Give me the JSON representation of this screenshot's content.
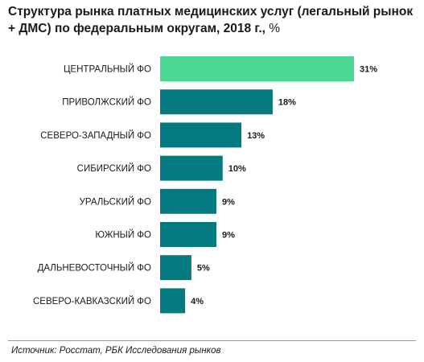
{
  "header": {
    "title": "Структура рынка платных медицинских услуг (легальный рынок + ДМС) по федеральным округам, 2018 г.,",
    "unit": "%"
  },
  "footer": {
    "source": "Источник: Росстат, РБК Исследования рынков"
  },
  "colors": {
    "highlight": "#4ed896",
    "bar": "#047a80"
  },
  "chart_data": {
    "type": "bar",
    "orientation": "horizontal",
    "categories": [
      "ЦЕНТРАЛЬНЫЙ ФО",
      "ПРИВОЛЖСКИЙ ФО",
      "СЕВЕРО-ЗАПАДНЫЙ ФО",
      "СИБИРСКИЙ ФО",
      "УРАЛЬСКИЙ ФО",
      "ЮЖНЫЙ ФО",
      "ДАЛЬНЕВОСТОЧНЫЙ ФО",
      "СЕВЕРО-КАВКАЗСКИЙ ФО"
    ],
    "values": [
      31,
      18,
      13,
      10,
      9,
      9,
      5,
      4
    ],
    "value_labels": [
      "31%",
      "18%",
      "13%",
      "10%",
      "9%",
      "9%",
      "5%",
      "4%"
    ],
    "highlighted_category": "ЦЕНТРАЛЬНЫЙ ФО",
    "xlim": [
      0,
      31
    ],
    "grid": false,
    "legend": "none"
  }
}
